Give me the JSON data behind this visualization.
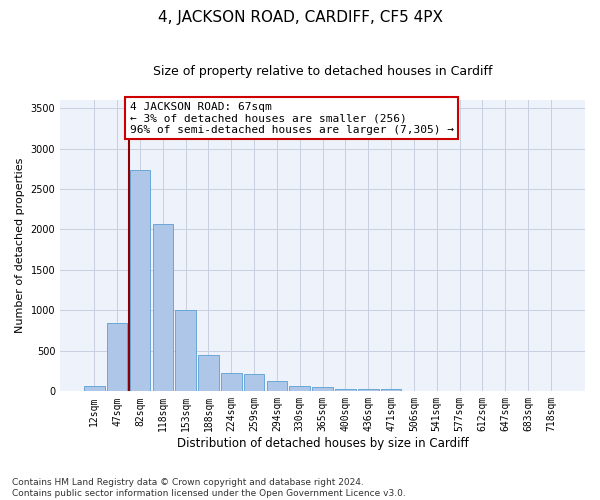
{
  "title": "4, JACKSON ROAD, CARDIFF, CF5 4PX",
  "subtitle": "Size of property relative to detached houses in Cardiff",
  "xlabel": "Distribution of detached houses by size in Cardiff",
  "ylabel": "Number of detached properties",
  "categories": [
    "12sqm",
    "47sqm",
    "82sqm",
    "118sqm",
    "153sqm",
    "188sqm",
    "224sqm",
    "259sqm",
    "294sqm",
    "330sqm",
    "365sqm",
    "400sqm",
    "436sqm",
    "471sqm",
    "506sqm",
    "541sqm",
    "577sqm",
    "612sqm",
    "647sqm",
    "683sqm",
    "718sqm"
  ],
  "values": [
    60,
    850,
    2730,
    2070,
    1010,
    455,
    225,
    215,
    130,
    65,
    55,
    30,
    25,
    25,
    0,
    0,
    0,
    0,
    0,
    0,
    0
  ],
  "bar_color": "#aec6e8",
  "bar_edge_color": "#5a9fd4",
  "grid_color": "#c8cfe0",
  "bg_color": "#eef2fa",
  "vline_x_index": 2,
  "vline_color": "#8b0000",
  "annotation_line1": "4 JACKSON ROAD: 67sqm",
  "annotation_line2": "← 3% of detached houses are smaller (256)",
  "annotation_line3": "96% of semi-detached houses are larger (7,305) →",
  "annotation_box_color": "white",
  "annotation_box_edge_color": "#cc0000",
  "ylim": [
    0,
    3600
  ],
  "yticks": [
    0,
    500,
    1000,
    1500,
    2000,
    2500,
    3000,
    3500
  ],
  "footer": "Contains HM Land Registry data © Crown copyright and database right 2024.\nContains public sector information licensed under the Open Government Licence v3.0.",
  "title_fontsize": 11,
  "subtitle_fontsize": 9,
  "xlabel_fontsize": 8.5,
  "ylabel_fontsize": 8,
  "tick_fontsize": 7,
  "annotation_fontsize": 8,
  "footer_fontsize": 6.5
}
